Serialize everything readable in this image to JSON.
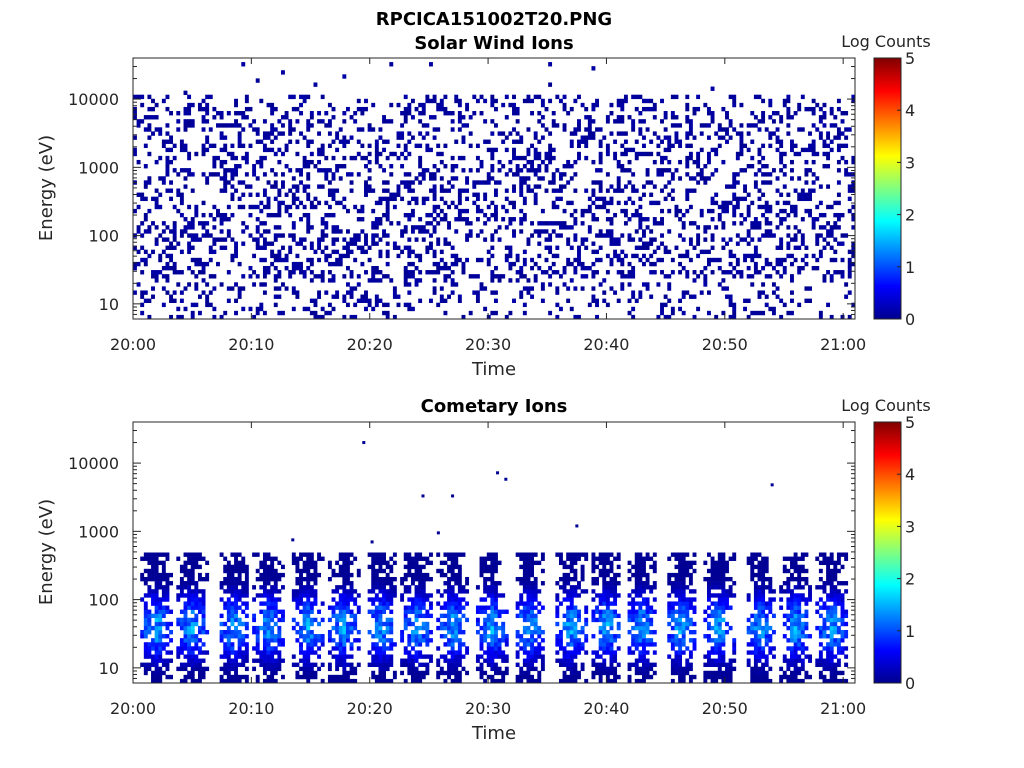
{
  "figure": {
    "main_title": "RPCICA151002T20.PNG"
  },
  "chart_data": [
    {
      "type": "heatmap",
      "title": "Solar Wind Ions",
      "xlabel": "Time",
      "ylabel": "Energy (eV)",
      "x_range": [
        "20:00",
        "21:01"
      ],
      "x_tick_labels": [
        "20:00",
        "20:10",
        "20:20",
        "20:30",
        "20:40",
        "20:50",
        "21:00"
      ],
      "y_scale": "log",
      "y_range_eV": [
        6,
        40000
      ],
      "y_tick_labels": [
        "10",
        "100",
        "1000",
        "10000"
      ],
      "colorbar": {
        "label": "Log Counts",
        "range": [
          0,
          5
        ],
        "tick_labels": [
          "0",
          "1",
          "2",
          "3",
          "4",
          "5"
        ],
        "colormap": "jet"
      },
      "description_values": {
        "typical_log_counts": 0.1,
        "energy_coverage_eV": [
          6,
          12000
        ],
        "sparse_points_up_to_eV": 40000
      },
      "grid": false
    },
    {
      "type": "heatmap",
      "title": "Cometary Ions",
      "xlabel": "Time",
      "ylabel": "Energy (eV)",
      "x_range": [
        "20:00",
        "21:01"
      ],
      "x_tick_labels": [
        "20:00",
        "20:10",
        "20:20",
        "20:30",
        "20:40",
        "20:50",
        "21:00"
      ],
      "y_scale": "log",
      "y_range_eV": [
        6,
        40000
      ],
      "y_tick_labels": [
        "10",
        "100",
        "1000",
        "10000"
      ],
      "colorbar": {
        "label": "Log Counts",
        "range": [
          0,
          5
        ],
        "tick_labels": [
          "0",
          "1",
          "2",
          "3",
          "4",
          "5"
        ],
        "colormap": "jet"
      },
      "bursts_minutes": [
        2,
        5,
        8.5,
        11.5,
        14.8,
        17.8,
        21,
        24,
        27,
        30.3,
        33.5,
        37,
        40,
        43,
        46.3,
        49.5,
        53,
        56,
        59
      ],
      "burst_peak_energy_eV": 40,
      "burst_peak_log_counts": 1.6,
      "burst_max_energy_eV": 500,
      "isolated_points": [
        {
          "minute": 19.5,
          "energy_eV": 20000
        },
        {
          "minute": 24.5,
          "energy_eV": 3300
        },
        {
          "minute": 27,
          "energy_eV": 3300
        },
        {
          "minute": 25.8,
          "energy_eV": 950
        },
        {
          "minute": 30.8,
          "energy_eV": 7200
        },
        {
          "minute": 31.5,
          "energy_eV": 5800
        },
        {
          "minute": 37.5,
          "energy_eV": 1200
        },
        {
          "minute": 54,
          "energy_eV": 4800
        },
        {
          "minute": 13.5,
          "energy_eV": 750
        },
        {
          "minute": 20.2,
          "energy_eV": 700
        }
      ],
      "grid": false
    }
  ]
}
